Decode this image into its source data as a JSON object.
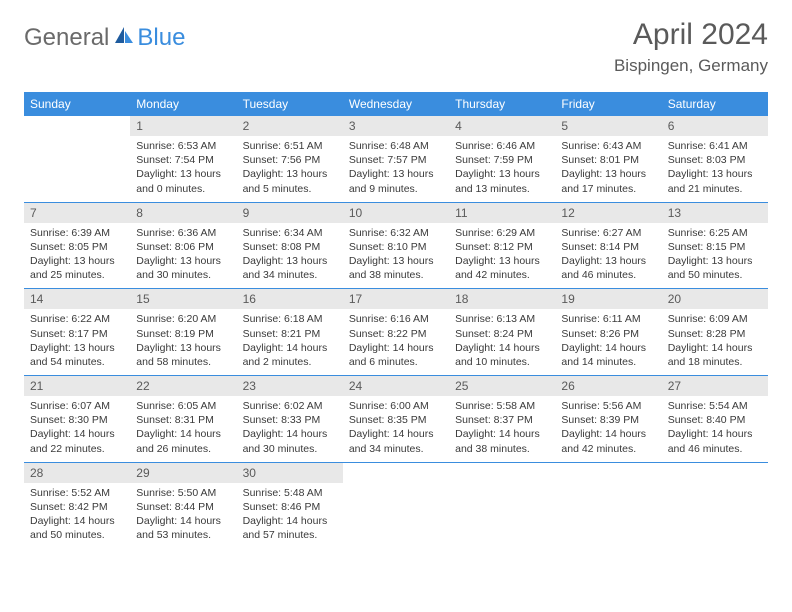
{
  "logo": {
    "word1": "General",
    "word2": "Blue"
  },
  "title": "April 2024",
  "location": "Bispingen, Germany",
  "colors": {
    "header_bg": "#3a8dde",
    "header_text": "#ffffff",
    "daynum_bg": "#e8e8e8",
    "border": "#3a8dde",
    "text": "#3a3a3a",
    "logo_gray": "#6a6a6a",
    "logo_blue": "#3a8dde",
    "logo_icon": "#1e5b9e"
  },
  "day_headers": [
    "Sunday",
    "Monday",
    "Tuesday",
    "Wednesday",
    "Thursday",
    "Friday",
    "Saturday"
  ],
  "weeks": [
    [
      {
        "n": "",
        "sr": "",
        "ss": "",
        "dl": ""
      },
      {
        "n": "1",
        "sr": "Sunrise: 6:53 AM",
        "ss": "Sunset: 7:54 PM",
        "dl": "Daylight: 13 hours and 0 minutes."
      },
      {
        "n": "2",
        "sr": "Sunrise: 6:51 AM",
        "ss": "Sunset: 7:56 PM",
        "dl": "Daylight: 13 hours and 5 minutes."
      },
      {
        "n": "3",
        "sr": "Sunrise: 6:48 AM",
        "ss": "Sunset: 7:57 PM",
        "dl": "Daylight: 13 hours and 9 minutes."
      },
      {
        "n": "4",
        "sr": "Sunrise: 6:46 AM",
        "ss": "Sunset: 7:59 PM",
        "dl": "Daylight: 13 hours and 13 minutes."
      },
      {
        "n": "5",
        "sr": "Sunrise: 6:43 AM",
        "ss": "Sunset: 8:01 PM",
        "dl": "Daylight: 13 hours and 17 minutes."
      },
      {
        "n": "6",
        "sr": "Sunrise: 6:41 AM",
        "ss": "Sunset: 8:03 PM",
        "dl": "Daylight: 13 hours and 21 minutes."
      }
    ],
    [
      {
        "n": "7",
        "sr": "Sunrise: 6:39 AM",
        "ss": "Sunset: 8:05 PM",
        "dl": "Daylight: 13 hours and 25 minutes."
      },
      {
        "n": "8",
        "sr": "Sunrise: 6:36 AM",
        "ss": "Sunset: 8:06 PM",
        "dl": "Daylight: 13 hours and 30 minutes."
      },
      {
        "n": "9",
        "sr": "Sunrise: 6:34 AM",
        "ss": "Sunset: 8:08 PM",
        "dl": "Daylight: 13 hours and 34 minutes."
      },
      {
        "n": "10",
        "sr": "Sunrise: 6:32 AM",
        "ss": "Sunset: 8:10 PM",
        "dl": "Daylight: 13 hours and 38 minutes."
      },
      {
        "n": "11",
        "sr": "Sunrise: 6:29 AM",
        "ss": "Sunset: 8:12 PM",
        "dl": "Daylight: 13 hours and 42 minutes."
      },
      {
        "n": "12",
        "sr": "Sunrise: 6:27 AM",
        "ss": "Sunset: 8:14 PM",
        "dl": "Daylight: 13 hours and 46 minutes."
      },
      {
        "n": "13",
        "sr": "Sunrise: 6:25 AM",
        "ss": "Sunset: 8:15 PM",
        "dl": "Daylight: 13 hours and 50 minutes."
      }
    ],
    [
      {
        "n": "14",
        "sr": "Sunrise: 6:22 AM",
        "ss": "Sunset: 8:17 PM",
        "dl": "Daylight: 13 hours and 54 minutes."
      },
      {
        "n": "15",
        "sr": "Sunrise: 6:20 AM",
        "ss": "Sunset: 8:19 PM",
        "dl": "Daylight: 13 hours and 58 minutes."
      },
      {
        "n": "16",
        "sr": "Sunrise: 6:18 AM",
        "ss": "Sunset: 8:21 PM",
        "dl": "Daylight: 14 hours and 2 minutes."
      },
      {
        "n": "17",
        "sr": "Sunrise: 6:16 AM",
        "ss": "Sunset: 8:22 PM",
        "dl": "Daylight: 14 hours and 6 minutes."
      },
      {
        "n": "18",
        "sr": "Sunrise: 6:13 AM",
        "ss": "Sunset: 8:24 PM",
        "dl": "Daylight: 14 hours and 10 minutes."
      },
      {
        "n": "19",
        "sr": "Sunrise: 6:11 AM",
        "ss": "Sunset: 8:26 PM",
        "dl": "Daylight: 14 hours and 14 minutes."
      },
      {
        "n": "20",
        "sr": "Sunrise: 6:09 AM",
        "ss": "Sunset: 8:28 PM",
        "dl": "Daylight: 14 hours and 18 minutes."
      }
    ],
    [
      {
        "n": "21",
        "sr": "Sunrise: 6:07 AM",
        "ss": "Sunset: 8:30 PM",
        "dl": "Daylight: 14 hours and 22 minutes."
      },
      {
        "n": "22",
        "sr": "Sunrise: 6:05 AM",
        "ss": "Sunset: 8:31 PM",
        "dl": "Daylight: 14 hours and 26 minutes."
      },
      {
        "n": "23",
        "sr": "Sunrise: 6:02 AM",
        "ss": "Sunset: 8:33 PM",
        "dl": "Daylight: 14 hours and 30 minutes."
      },
      {
        "n": "24",
        "sr": "Sunrise: 6:00 AM",
        "ss": "Sunset: 8:35 PM",
        "dl": "Daylight: 14 hours and 34 minutes."
      },
      {
        "n": "25",
        "sr": "Sunrise: 5:58 AM",
        "ss": "Sunset: 8:37 PM",
        "dl": "Daylight: 14 hours and 38 minutes."
      },
      {
        "n": "26",
        "sr": "Sunrise: 5:56 AM",
        "ss": "Sunset: 8:39 PM",
        "dl": "Daylight: 14 hours and 42 minutes."
      },
      {
        "n": "27",
        "sr": "Sunrise: 5:54 AM",
        "ss": "Sunset: 8:40 PM",
        "dl": "Daylight: 14 hours and 46 minutes."
      }
    ],
    [
      {
        "n": "28",
        "sr": "Sunrise: 5:52 AM",
        "ss": "Sunset: 8:42 PM",
        "dl": "Daylight: 14 hours and 50 minutes."
      },
      {
        "n": "29",
        "sr": "Sunrise: 5:50 AM",
        "ss": "Sunset: 8:44 PM",
        "dl": "Daylight: 14 hours and 53 minutes."
      },
      {
        "n": "30",
        "sr": "Sunrise: 5:48 AM",
        "ss": "Sunset: 8:46 PM",
        "dl": "Daylight: 14 hours and 57 minutes."
      },
      {
        "n": "",
        "sr": "",
        "ss": "",
        "dl": ""
      },
      {
        "n": "",
        "sr": "",
        "ss": "",
        "dl": ""
      },
      {
        "n": "",
        "sr": "",
        "ss": "",
        "dl": ""
      },
      {
        "n": "",
        "sr": "",
        "ss": "",
        "dl": ""
      }
    ]
  ]
}
